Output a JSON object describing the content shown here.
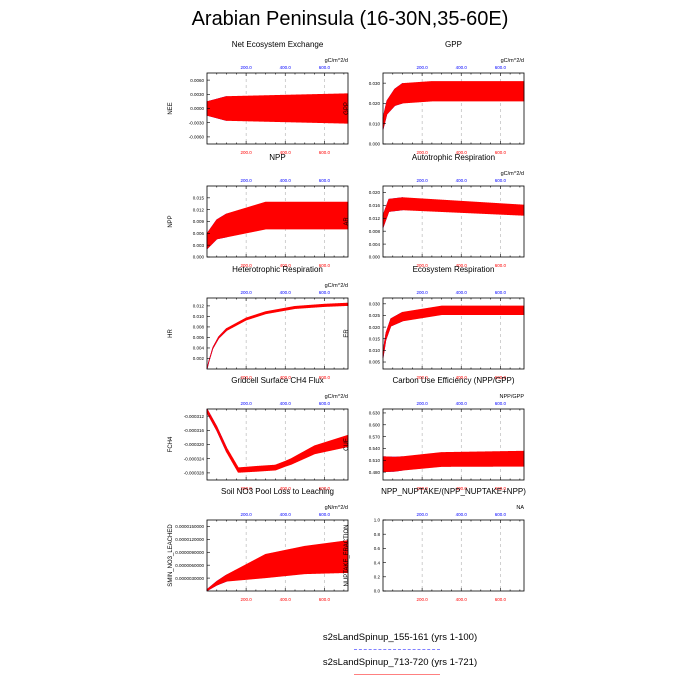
{
  "title": "Arabian Peninsula (16-30N,35-60E)",
  "colors": {
    "run1": "#0000ff",
    "run2": "#ff0000",
    "axis": "#000000",
    "grid": "#a0a0a0"
  },
  "top_tick_labels": [
    "200.0",
    "400.0",
    "600.0"
  ],
  "bottom_tick_labels": [
    "200.0",
    "400.0",
    "600.0"
  ],
  "legend": {
    "run1": "s2sLandSpinup_155-161 (yrs 1-100)",
    "run2": "s2sLandSpinup_713-720 (yrs 1-721)"
  },
  "chart_data": [
    {
      "type": "line",
      "title": "Net Ecosystem Exchange",
      "ylabel": "NEE",
      "units": "gC/m^2/d",
      "xlim": [
        0,
        721
      ],
      "ylim": [
        -0.0075,
        0.0075
      ],
      "yticks": [
        -0.006,
        -0.003,
        0.0,
        0.003,
        0.006
      ],
      "ytick_labels": [
        "-0.0060",
        "-0.0030",
        "0.0000",
        "0.0030",
        "0.0060"
      ],
      "series": [
        {
          "color": "run1",
          "x_end": 100,
          "center": [
            [
              0,
              0.0
            ],
            [
              100,
              0.0
            ]
          ],
          "amp": [
            [
              0,
              0.0015
            ],
            [
              100,
              0.0026
            ]
          ]
        },
        {
          "color": "run2",
          "x_end": 721,
          "center": [
            [
              0,
              0.0
            ],
            [
              721,
              0.0
            ]
          ],
          "amp": [
            [
              0,
              0.0015
            ],
            [
              100,
              0.0026
            ],
            [
              721,
              0.0032
            ]
          ]
        }
      ]
    },
    {
      "type": "line",
      "title": "GPP",
      "ylabel": "GPP",
      "units": "gC/m^2/d",
      "xlim": [
        0,
        721
      ],
      "ylim": [
        0.0,
        0.035
      ],
      "yticks": [
        0.0,
        0.01,
        0.02,
        0.03
      ],
      "ytick_labels": [
        "0.000",
        "0.010",
        "0.020",
        "0.030"
      ],
      "series": [
        {
          "color": "run1",
          "x_end": 100,
          "center": [
            [
              0,
              0.01
            ],
            [
              20,
              0.018
            ],
            [
              60,
              0.023
            ],
            [
              100,
              0.025
            ]
          ],
          "amp": [
            [
              0,
              0.003
            ],
            [
              100,
              0.005
            ]
          ]
        },
        {
          "color": "run2",
          "x_end": 721,
          "center": [
            [
              0,
              0.01
            ],
            [
              20,
              0.018
            ],
            [
              60,
              0.023
            ],
            [
              100,
              0.025
            ],
            [
              250,
              0.026
            ],
            [
              721,
              0.026
            ]
          ],
          "amp": [
            [
              0,
              0.003
            ],
            [
              100,
              0.005
            ],
            [
              721,
              0.005
            ]
          ]
        }
      ]
    },
    {
      "type": "line",
      "title": "NPP",
      "ylabel": "NPP",
      "units": "",
      "xlim": [
        0,
        721
      ],
      "ylim": [
        0.0,
        0.018
      ],
      "yticks": [
        0.0,
        0.003,
        0.006,
        0.009,
        0.012,
        0.015
      ],
      "ytick_labels": [
        "0.000",
        "0.003",
        "0.006",
        "0.009",
        "0.012",
        "0.015"
      ],
      "series": [
        {
          "color": "run1",
          "x_end": 100,
          "center": [
            [
              0,
              0.004
            ],
            [
              50,
              0.007
            ],
            [
              100,
              0.008
            ]
          ],
          "amp": [
            [
              0,
              0.002
            ],
            [
              100,
              0.003
            ]
          ]
        },
        {
          "color": "run2",
          "x_end": 721,
          "center": [
            [
              0,
              0.004
            ],
            [
              50,
              0.007
            ],
            [
              100,
              0.008
            ],
            [
              300,
              0.0105
            ],
            [
              721,
              0.0105
            ]
          ],
          "amp": [
            [
              0,
              0.002
            ],
            [
              100,
              0.003
            ],
            [
              300,
              0.0035
            ],
            [
              721,
              0.0035
            ]
          ]
        }
      ]
    },
    {
      "type": "line",
      "title": "Autotrophic Respiration",
      "ylabel": "AR",
      "units": "gC/m^2/d",
      "xlim": [
        0,
        721
      ],
      "ylim": [
        0.0,
        0.022
      ],
      "yticks": [
        0.0,
        0.004,
        0.008,
        0.012,
        0.016,
        0.02
      ],
      "ytick_labels": [
        "0.000",
        "0.004",
        "0.008",
        "0.012",
        "0.016",
        "0.020"
      ],
      "series": [
        {
          "color": "run1",
          "x_end": 100,
          "center": [
            [
              0,
              0.011
            ],
            [
              30,
              0.016
            ],
            [
              100,
              0.0165
            ]
          ],
          "amp": [
            [
              0,
              0.002
            ],
            [
              100,
              0.002
            ]
          ]
        },
        {
          "color": "run2",
          "x_end": 721,
          "center": [
            [
              0,
              0.011
            ],
            [
              30,
              0.016
            ],
            [
              100,
              0.0165
            ],
            [
              721,
              0.0145
            ]
          ],
          "amp": [
            [
              0,
              0.002
            ],
            [
              100,
              0.002
            ],
            [
              721,
              0.0017
            ]
          ]
        }
      ]
    },
    {
      "type": "line",
      "title": "Heterotrophic Respiration",
      "ylabel": "HR",
      "units": "gC/m^2/d",
      "xlim": [
        0,
        721
      ],
      "ylim": [
        0.0,
        0.0135
      ],
      "yticks": [
        0.002,
        0.004,
        0.006,
        0.008,
        0.01,
        0.012
      ],
      "ytick_labels": [
        "0.002",
        "0.004",
        "0.006",
        "0.008",
        "0.010",
        "0.012"
      ],
      "series": [
        {
          "color": "run1",
          "x_end": 100,
          "center": [
            [
              0,
              0.0
            ],
            [
              10,
              0.0015
            ],
            [
              30,
              0.004
            ],
            [
              60,
              0.006
            ],
            [
              100,
              0.0075
            ]
          ],
          "amp": [
            [
              0,
              0.0001
            ],
            [
              100,
              0.00025
            ]
          ]
        },
        {
          "color": "run2",
          "x_end": 721,
          "center": [
            [
              0,
              0.0
            ],
            [
              10,
              0.0015
            ],
            [
              30,
              0.004
            ],
            [
              60,
              0.006
            ],
            [
              100,
              0.0075
            ],
            [
              200,
              0.0095
            ],
            [
              300,
              0.0107
            ],
            [
              450,
              0.0117
            ],
            [
              600,
              0.0121
            ],
            [
              721,
              0.0123
            ]
          ],
          "amp": [
            [
              0,
              0.0001
            ],
            [
              100,
              0.00025
            ],
            [
              721,
              0.0003
            ]
          ]
        }
      ]
    },
    {
      "type": "line",
      "title": "Ecosystem Respiration",
      "ylabel": "ER",
      "units": "",
      "xlim": [
        0,
        721
      ],
      "ylim": [
        0.002,
        0.0325
      ],
      "yticks": [
        0.005,
        0.01,
        0.015,
        0.02,
        0.025,
        0.03
      ],
      "ytick_labels": [
        "0.005",
        "0.010",
        "0.015",
        "0.020",
        "0.025",
        "0.030"
      ],
      "series": [
        {
          "color": "run1",
          "x_end": 100,
          "center": [
            [
              0,
              0.008
            ],
            [
              15,
              0.016
            ],
            [
              40,
              0.022
            ],
            [
              100,
              0.0245
            ]
          ],
          "amp": [
            [
              0,
              0.0015
            ],
            [
              100,
              0.002
            ]
          ]
        },
        {
          "color": "run2",
          "x_end": 721,
          "center": [
            [
              0,
              0.008
            ],
            [
              15,
              0.016
            ],
            [
              40,
              0.022
            ],
            [
              100,
              0.0245
            ],
            [
              300,
              0.0272
            ],
            [
              721,
              0.0272
            ]
          ],
          "amp": [
            [
              0,
              0.0015
            ],
            [
              100,
              0.002
            ],
            [
              721,
              0.002
            ]
          ]
        }
      ]
    },
    {
      "type": "line",
      "title": "Gridcell Surface CH4 Flux",
      "ylabel": "FCH4",
      "units": "gC/m^2/d",
      "xlim": [
        0,
        721
      ],
      "ylim": [
        -0.00033,
        -0.00031
      ],
      "yticks": [
        -0.000328,
        -0.000324,
        -0.00032,
        -0.000316,
        -0.000312
      ],
      "ytick_labels": [
        "-0.000328",
        "-0.000324",
        "-0.000320",
        "-0.000316",
        "-0.000312"
      ],
      "series": [
        {
          "color": "run1",
          "x_end": 100,
          "center": [
            [
              0,
              -0.0003105
            ],
            [
              50,
              -0.0003155
            ],
            [
              100,
              -0.0003215
            ]
          ],
          "amp": [
            [
              0,
              6e-07
            ],
            [
              100,
              7e-07
            ]
          ]
        },
        {
          "color": "run2",
          "x_end": 721,
          "center": [
            [
              0,
              -0.0003105
            ],
            [
              50,
              -0.0003155
            ],
            [
              100,
              -0.0003215
            ],
            [
              160,
              -0.0003272
            ],
            [
              350,
              -0.0003265
            ],
            [
              430,
              -0.0003248
            ],
            [
              550,
              -0.0003215
            ],
            [
              721,
              -0.000319
            ]
          ],
          "amp": [
            [
              0,
              6e-07
            ],
            [
              100,
              7e-07
            ],
            [
              250,
              8e-07
            ],
            [
              400,
              8e-07
            ],
            [
              721,
              1.7e-06
            ]
          ]
        }
      ]
    },
    {
      "type": "line",
      "title": "Carbon Use Efficiency (NPP/GPP)",
      "ylabel": "CUE",
      "units": "NPP/GPP",
      "xlim": [
        0,
        721
      ],
      "ylim": [
        0.46,
        0.64
      ],
      "yticks": [
        0.48,
        0.51,
        0.54,
        0.57,
        0.6,
        0.63
      ],
      "ytick_labels": [
        "0.480",
        "0.510",
        "0.540",
        "0.570",
        "0.600",
        "0.630"
      ],
      "series": [
        {
          "color": "run1",
          "x_end": 100,
          "center": [
            [
              0,
              0.5
            ],
            [
              60,
              0.5
            ],
            [
              100,
              0.502
            ]
          ],
          "amp": [
            [
              0,
              0.02
            ],
            [
              100,
              0.018
            ]
          ]
        },
        {
          "color": "run2",
          "x_end": 721,
          "center": [
            [
              0,
              0.5
            ],
            [
              60,
              0.5
            ],
            [
              100,
              0.502
            ],
            [
              300,
              0.512
            ],
            [
              721,
              0.514
            ]
          ],
          "amp": [
            [
              0,
              0.02
            ],
            [
              100,
              0.018
            ],
            [
              721,
              0.02
            ]
          ]
        }
      ]
    },
    {
      "type": "line",
      "title": "Soil NO3 Pool Loss to Leaching",
      "ylabel": "SMIN_NO3_LEACHED",
      "units": "gN/m^2/d",
      "xlim": [
        0,
        721
      ],
      "ylim": [
        0.0,
        1.65e-05
      ],
      "yticks": [
        3e-06,
        6e-06,
        9e-06,
        1.2e-05,
        1.5e-05
      ],
      "ytick_labels": [
        "0.0000030000",
        "0.0000060000",
        "0.0000090000",
        "0.0000120000",
        "0.0000150000"
      ],
      "series": [
        {
          "color": "run1",
          "x_end": 100,
          "center": [
            [
              0,
              2e-07
            ],
            [
              50,
              1.8e-06
            ],
            [
              100,
              3e-06
            ]
          ],
          "amp": [
            [
              0,
              2e-07
            ],
            [
              100,
              8e-07
            ]
          ]
        },
        {
          "color": "run2",
          "x_end": 721,
          "center": [
            [
              0,
              2e-07
            ],
            [
              50,
              1.8e-06
            ],
            [
              100,
              3e-06
            ],
            [
              300,
              5.8e-06
            ],
            [
              500,
              7.2e-06
            ],
            [
              721,
              8e-06
            ]
          ],
          "amp": [
            [
              0,
              2e-07
            ],
            [
              100,
              8e-07
            ],
            [
              300,
              2.8e-06
            ],
            [
              721,
              3.8e-06
            ]
          ]
        }
      ]
    },
    {
      "type": "line",
      "title": "NPP_NUPTAKE/(NPP_NUPTAKE+NPP)",
      "ylabel": "NUPTAKE_FRACTION",
      "units": "NA",
      "xlim": [
        0,
        721
      ],
      "ylim": [
        0.0,
        1.0
      ],
      "yticks": [
        0.0,
        0.2,
        0.4,
        0.6,
        0.8,
        1.0
      ],
      "ytick_labels": [
        "0.0",
        "0.2",
        "0.4",
        "0.6",
        "0.8",
        "1.0"
      ],
      "series": []
    }
  ]
}
